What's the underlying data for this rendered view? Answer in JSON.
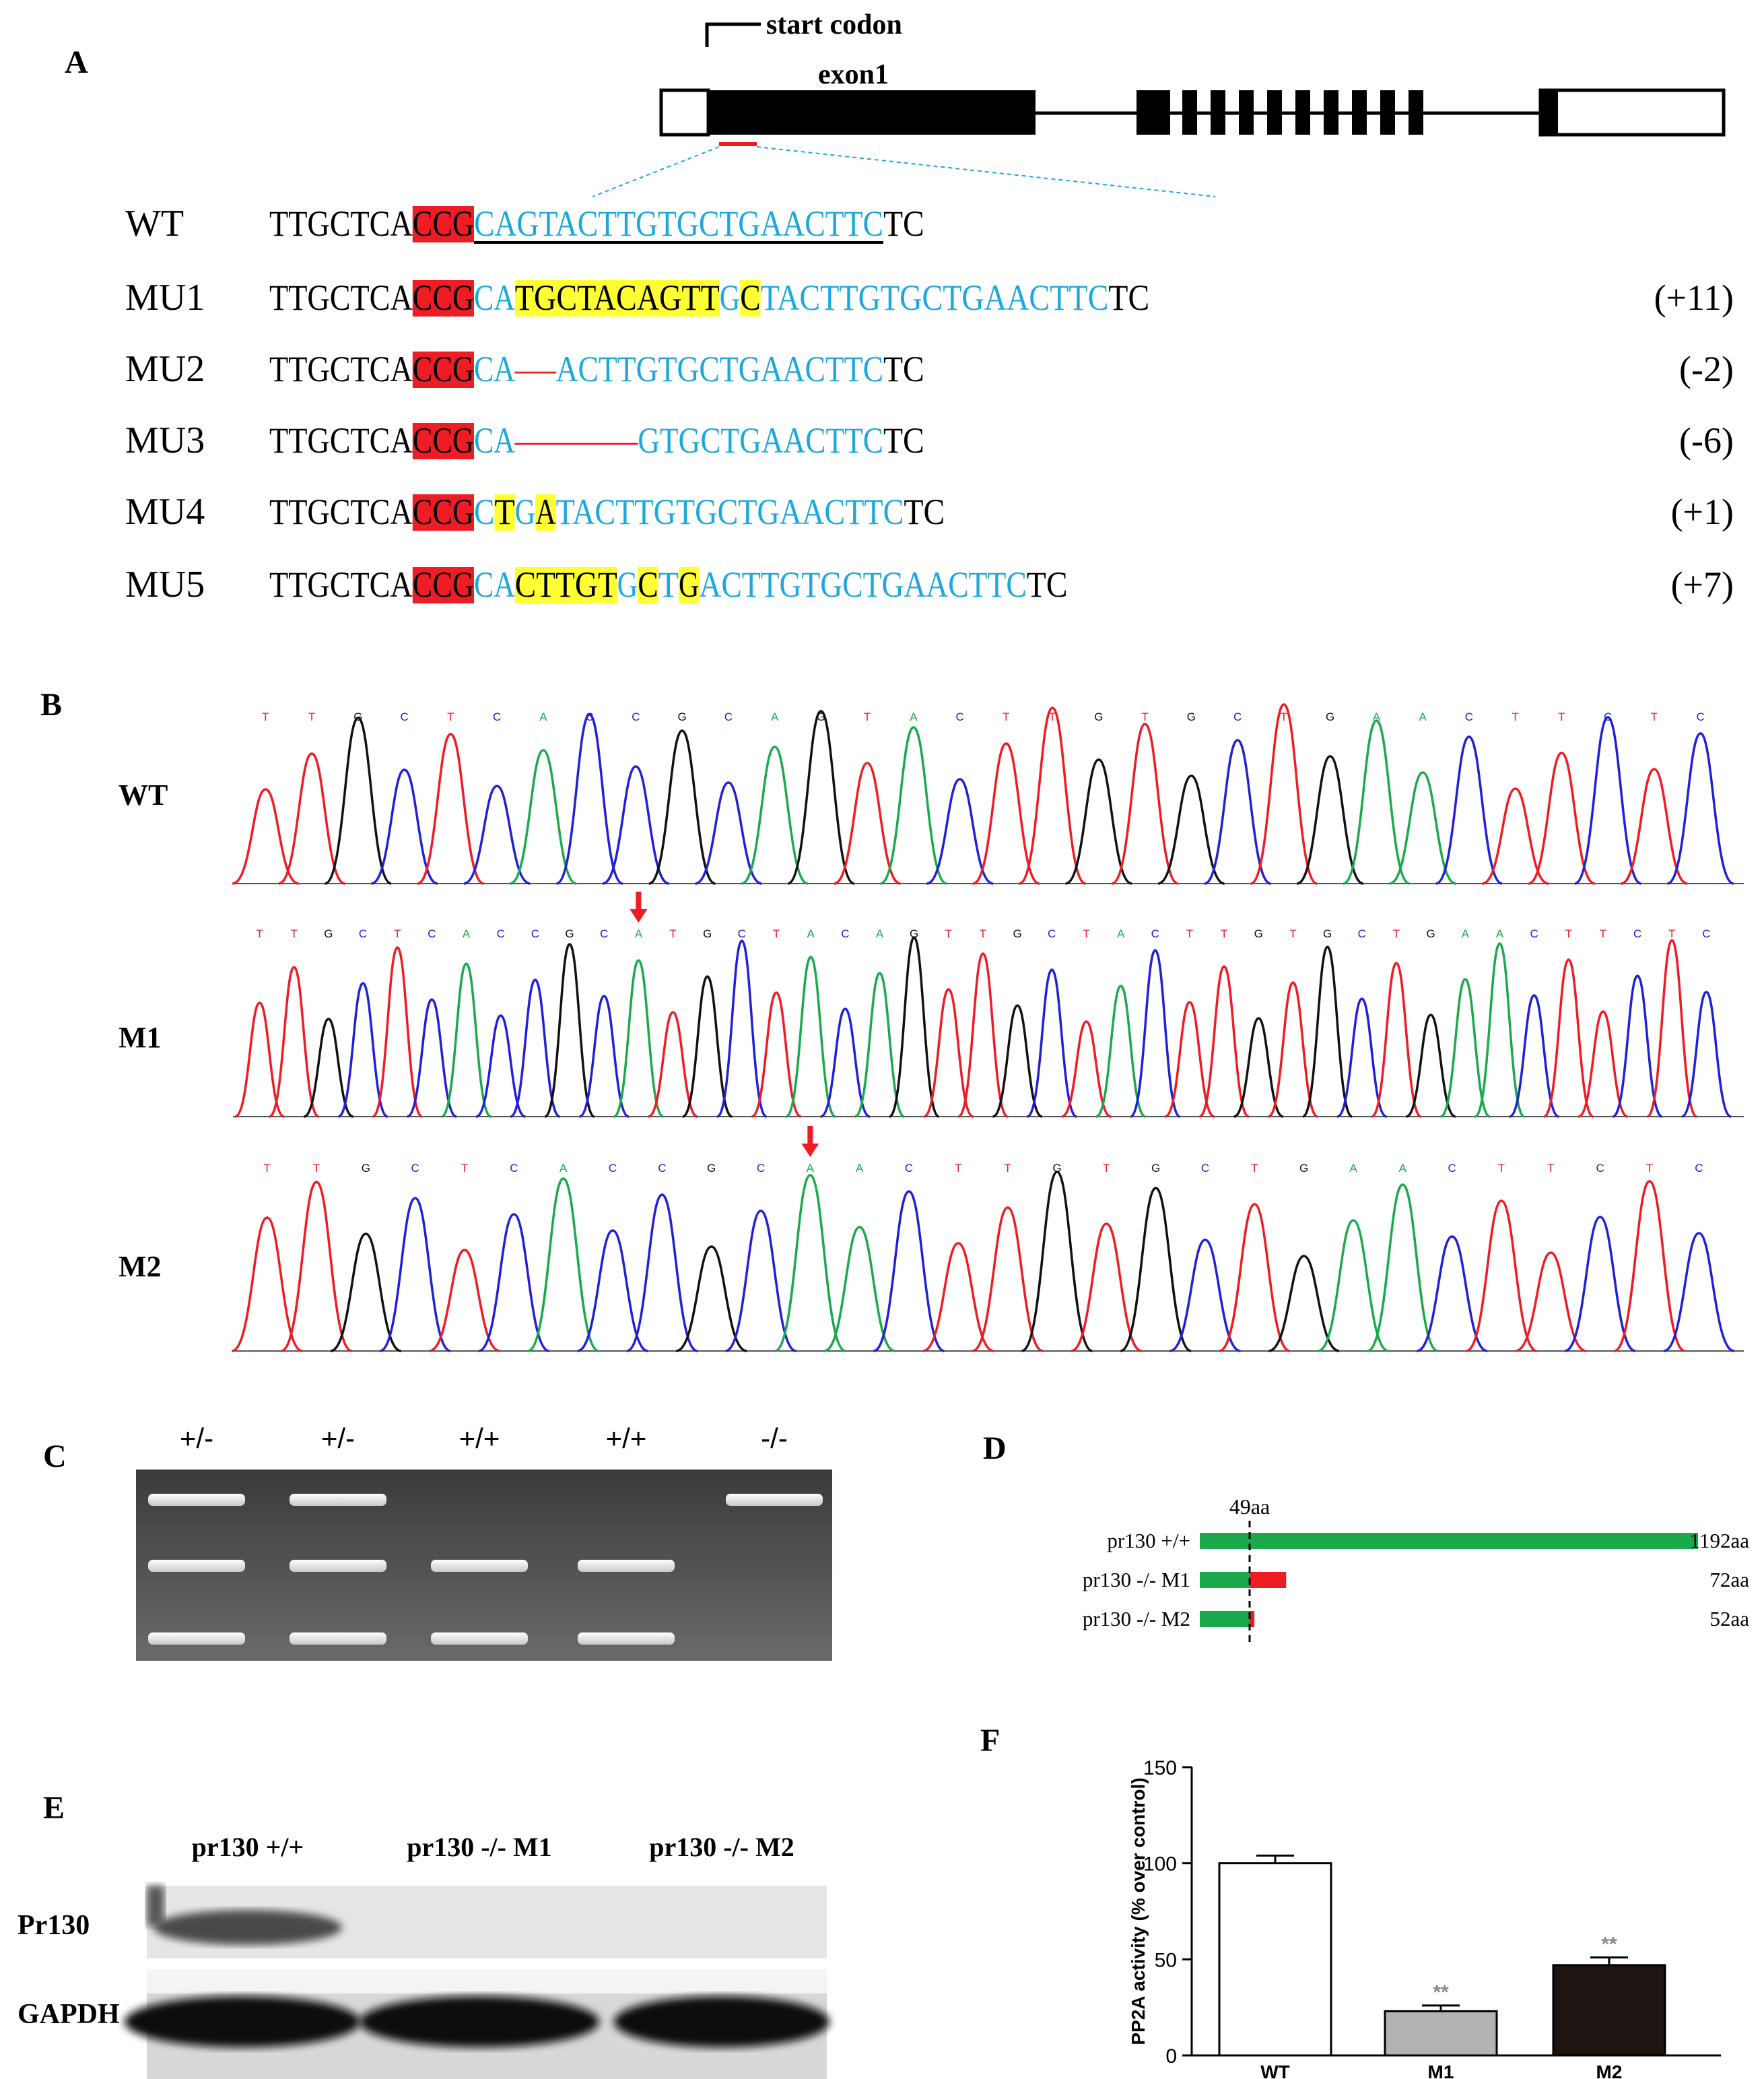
{
  "panels": {
    "a": "A",
    "b": "B",
    "c": "C",
    "d": "D",
    "e": "E",
    "f": "F"
  },
  "panelA": {
    "start_codon": "start codon",
    "exon1": "exon1",
    "rows": [
      {
        "label": "WT",
        "segments": [
          {
            "t": "TTGCTCA",
            "c": "black"
          },
          {
            "t": "CCG",
            "c": "black",
            "bg": "red"
          },
          {
            "t": "CAGTACTTGTGCTGAACTTC",
            "c": "blue",
            "u": true
          },
          {
            "t": "TC",
            "c": "black"
          }
        ],
        "change": ""
      },
      {
        "label": "MU1",
        "segments": [
          {
            "t": "TTGCTCA",
            "c": "black"
          },
          {
            "t": "CCG",
            "c": "black",
            "bg": "red"
          },
          {
            "t": "CA",
            "c": "blue"
          },
          {
            "t": "TGCTACAGTT",
            "c": "black",
            "bg": "yellow"
          },
          {
            "t": "G",
            "c": "blue"
          },
          {
            "t": "C",
            "c": "black",
            "bg": "yellow"
          },
          {
            "t": "TACTTGTGCTGAACTTC",
            "c": "blue"
          },
          {
            "t": "TC",
            "c": "black"
          }
        ],
        "change": "(+11)"
      },
      {
        "label": "MU2",
        "segments": [
          {
            "t": "TTGCTCA",
            "c": "black"
          },
          {
            "t": "CCG",
            "c": "black",
            "bg": "red"
          },
          {
            "t": "CA",
            "c": "blue"
          },
          {
            "t": "––",
            "c": "red"
          },
          {
            "t": "ACTTGTGCTGAACTTC",
            "c": "blue"
          },
          {
            "t": "TC",
            "c": "black"
          }
        ],
        "change": "(-2)"
      },
      {
        "label": "MU3",
        "segments": [
          {
            "t": "TTGCTCA",
            "c": "black"
          },
          {
            "t": "CCG",
            "c": "black",
            "bg": "red"
          },
          {
            "t": "CA",
            "c": "blue"
          },
          {
            "t": "––––––",
            "c": "red"
          },
          {
            "t": "GTGCTGAACTTC",
            "c": "blue"
          },
          {
            "t": "TC",
            "c": "black"
          }
        ],
        "change": "(-6)"
      },
      {
        "label": "MU4",
        "segments": [
          {
            "t": "TTGCTCA",
            "c": "black"
          },
          {
            "t": "CCG",
            "c": "black",
            "bg": "red"
          },
          {
            "t": "C",
            "c": "blue"
          },
          {
            "t": "T",
            "c": "black",
            "bg": "yellow"
          },
          {
            "t": "G",
            "c": "blue"
          },
          {
            "t": "A",
            "c": "black",
            "bg": "yellow"
          },
          {
            "t": "TACTTGTGCTGAACTTC",
            "c": "blue"
          },
          {
            "t": "TC",
            "c": "black"
          }
        ],
        "change": "(+1)"
      },
      {
        "label": "MU5",
        "segments": [
          {
            "t": "TTGCTCA",
            "c": "black"
          },
          {
            "t": "CCG",
            "c": "black",
            "bg": "red"
          },
          {
            "t": "CA",
            "c": "blue"
          },
          {
            "t": "CTTGT",
            "c": "black",
            "bg": "yellow"
          },
          {
            "t": "G",
            "c": "blue"
          },
          {
            "t": "C",
            "c": "black",
            "bg": "yellow"
          },
          {
            "t": "T",
            "c": "blue"
          },
          {
            "t": "G",
            "c": "black",
            "bg": "yellow"
          },
          {
            "t": "ACTTGTGCTGAACTTC",
            "c": "blue"
          },
          {
            "t": "TC",
            "c": "black"
          }
        ],
        "change": "(+7)"
      }
    ]
  },
  "panelB": {
    "traces": [
      {
        "label": "WT",
        "bases": "TTGCTCACCGCAGTACTTGTGCTGAACTTCTC"
      },
      {
        "label": "M1",
        "bases": "TTGCTCACCGCATGCTACAGTTGCTACTTGTGCTGAACTTCTC"
      },
      {
        "label": "M2",
        "bases": "TTGCTCACCGCAACTTGTGCTGAACTTCTC"
      }
    ]
  },
  "panelC": {
    "lanes": [
      "+/-",
      "+/-",
      "+/+",
      "+/+",
      "-/-"
    ]
  },
  "panelD": {
    "marker": "49aa",
    "rows": [
      {
        "label": "pr130 +/+",
        "length": 1192,
        "length_label": "1192aa"
      },
      {
        "label": "pr130 -/- M1",
        "length": 72,
        "length_label": "72aa"
      },
      {
        "label": "pr130 -/- M2",
        "length": 52,
        "length_label": "52aa"
      }
    ]
  },
  "panelE": {
    "lanes": [
      "pr130 +/+",
      "pr130 -/- M1",
      "pr130 -/- M2"
    ],
    "rows": [
      "Pr130",
      "GAPDH"
    ]
  },
  "chart_data": {
    "type": "bar",
    "categories": [
      "WT",
      "M1",
      "M2"
    ],
    "values": [
      100,
      23,
      47
    ],
    "errors": [
      4,
      3,
      4
    ],
    "significance": [
      "",
      "**",
      "**"
    ],
    "ylabel": "PP2A activity (% over control)",
    "yticks": [
      "0",
      "50",
      "100",
      "150"
    ],
    "ylim": [
      0,
      150
    ],
    "colors": [
      "#ffffff",
      "#b3b3b3",
      "#1e1412"
    ]
  },
  "colors": {
    "red": "#ee1c24",
    "yellow": "#ffff33",
    "blue": "#1ba8e0",
    "green": "#1aaa4c"
  }
}
